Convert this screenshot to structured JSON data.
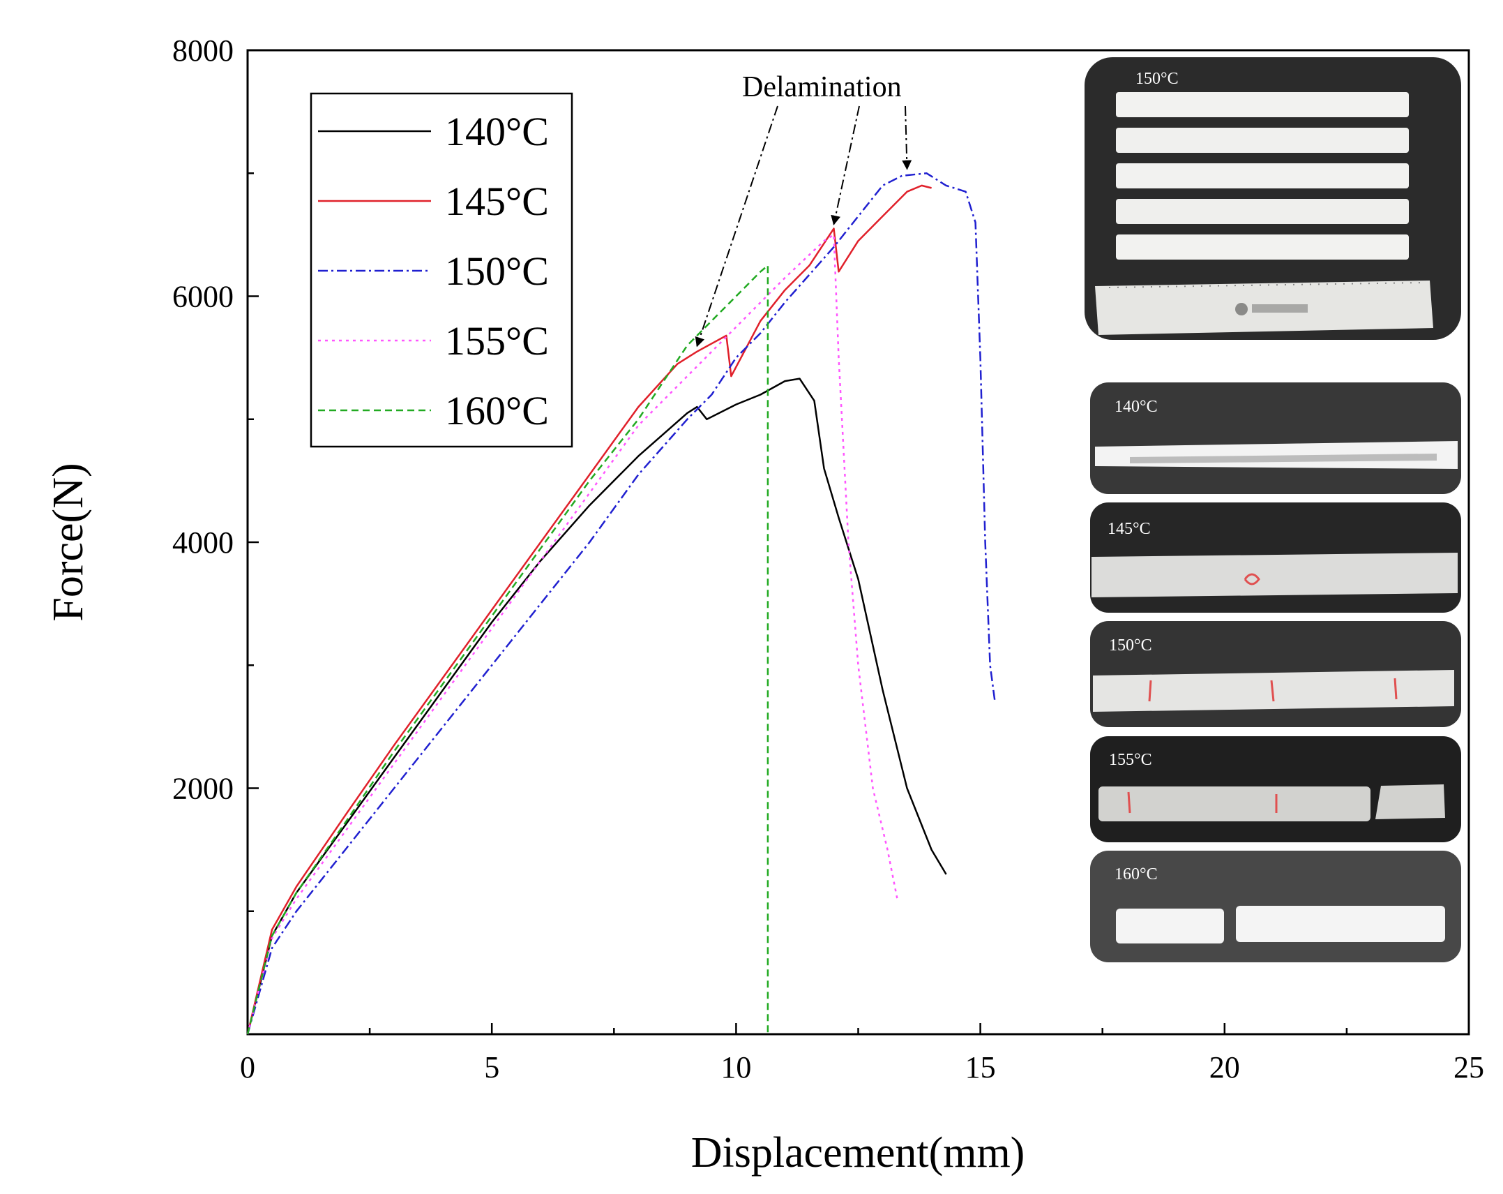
{
  "chart_data": {
    "type": "line",
    "xlabel": "Displacement(mm)",
    "ylabel": "Force(N)",
    "xlim": [
      0,
      25
    ],
    "ylim": [
      0,
      8000
    ],
    "x_ticks": [
      "0",
      "5",
      "10",
      "15",
      "20",
      "25"
    ],
    "x_tick_values": [
      0,
      5,
      10,
      15,
      20,
      25
    ],
    "y_ticks": [
      "2000",
      "4000",
      "6000",
      "8000"
    ],
    "y_tick_values": [
      2000,
      4000,
      6000,
      8000
    ],
    "annotation": "Delamination",
    "annotation_targets": [
      [
        9.2,
        5560
      ],
      [
        12.0,
        6550
      ],
      [
        13.5,
        7000
      ]
    ],
    "series": [
      {
        "name": "140°C",
        "color": "#000000",
        "dash": "solid",
        "points": [
          [
            0,
            0
          ],
          [
            0.5,
            800
          ],
          [
            1,
            1150
          ],
          [
            2,
            1700
          ],
          [
            3,
            2250
          ],
          [
            4,
            2800
          ],
          [
            5,
            3350
          ],
          [
            6,
            3850
          ],
          [
            7,
            4300
          ],
          [
            8,
            4700
          ],
          [
            9,
            5050
          ],
          [
            9.2,
            5100
          ],
          [
            9.4,
            5000
          ],
          [
            10,
            5120
          ],
          [
            10.5,
            5200
          ],
          [
            11,
            5310
          ],
          [
            11.3,
            5330
          ],
          [
            11.6,
            5150
          ],
          [
            11.8,
            4600
          ],
          [
            12.1,
            4200
          ],
          [
            12.5,
            3700
          ],
          [
            13,
            2800
          ],
          [
            13.5,
            2000
          ],
          [
            14,
            1500
          ],
          [
            14.3,
            1300
          ]
        ]
      },
      {
        "name": "145°C",
        "color": "#e0202a",
        "dash": "solid",
        "points": [
          [
            0,
            0
          ],
          [
            0.5,
            850
          ],
          [
            1,
            1200
          ],
          [
            2,
            1780
          ],
          [
            3,
            2350
          ],
          [
            4,
            2900
          ],
          [
            5,
            3450
          ],
          [
            6,
            4000
          ],
          [
            7,
            4550
          ],
          [
            8,
            5100
          ],
          [
            8.8,
            5450
          ],
          [
            9.2,
            5550
          ],
          [
            9.8,
            5680
          ],
          [
            9.9,
            5350
          ],
          [
            10.5,
            5800
          ],
          [
            11,
            6050
          ],
          [
            11.5,
            6250
          ],
          [
            12,
            6550
          ],
          [
            12.1,
            6200
          ],
          [
            12.5,
            6450
          ],
          [
            13,
            6650
          ],
          [
            13.5,
            6850
          ],
          [
            13.8,
            6900
          ],
          [
            14,
            6880
          ]
        ]
      },
      {
        "name": "150°C",
        "color": "#2020d0",
        "dash": "dashdot",
        "points": [
          [
            0,
            0
          ],
          [
            0.5,
            700
          ],
          [
            1,
            1000
          ],
          [
            2,
            1500
          ],
          [
            3,
            2000
          ],
          [
            4,
            2500
          ],
          [
            5,
            3000
          ],
          [
            6,
            3500
          ],
          [
            7,
            4000
          ],
          [
            8,
            4550
          ],
          [
            9,
            5000
          ],
          [
            9.5,
            5200
          ],
          [
            10,
            5500
          ],
          [
            10.5,
            5700
          ],
          [
            11,
            5950
          ],
          [
            12,
            6400
          ],
          [
            13,
            6900
          ],
          [
            13.4,
            6980
          ],
          [
            13.9,
            7000
          ],
          [
            14.3,
            6900
          ],
          [
            14.7,
            6850
          ],
          [
            14.9,
            6600
          ],
          [
            15,
            5500
          ],
          [
            15.1,
            4000
          ],
          [
            15.2,
            3000
          ],
          [
            15.3,
            2700
          ]
        ]
      },
      {
        "name": "155°C",
        "color": "#ff55ff",
        "dash": "dotted",
        "points": [
          [
            0,
            0
          ],
          [
            0.5,
            780
          ],
          [
            1,
            1100
          ],
          [
            2,
            1650
          ],
          [
            3,
            2200
          ],
          [
            4,
            2750
          ],
          [
            5,
            3300
          ],
          [
            6,
            3850
          ],
          [
            7,
            4400
          ],
          [
            8,
            4950
          ],
          [
            9,
            5350
          ],
          [
            10,
            5750
          ],
          [
            11,
            6150
          ],
          [
            11.8,
            6450
          ],
          [
            12,
            6500
          ],
          [
            12.1,
            5500
          ],
          [
            12.3,
            4000
          ],
          [
            12.5,
            3000
          ],
          [
            12.8,
            2000
          ],
          [
            13.1,
            1500
          ],
          [
            13.3,
            1100
          ]
        ]
      },
      {
        "name": "160°C",
        "color": "#22aa22",
        "dash": "dashed",
        "points": [
          [
            0,
            0
          ],
          [
            0.5,
            800
          ],
          [
            1,
            1150
          ],
          [
            2,
            1720
          ],
          [
            3,
            2300
          ],
          [
            4,
            2850
          ],
          [
            5,
            3400
          ],
          [
            6,
            3950
          ],
          [
            7,
            4500
          ],
          [
            8,
            5000
          ],
          [
            9,
            5600
          ],
          [
            10,
            6000
          ],
          [
            10.5,
            6200
          ],
          [
            10.65,
            6250
          ],
          [
            10.65,
            0
          ]
        ]
      }
    ]
  },
  "photos": [
    {
      "label": "150°C"
    },
    {
      "label": "140°C"
    },
    {
      "label": "145°C"
    },
    {
      "label": "150°C"
    },
    {
      "label": "155°C"
    },
    {
      "label": "160°C"
    }
  ]
}
